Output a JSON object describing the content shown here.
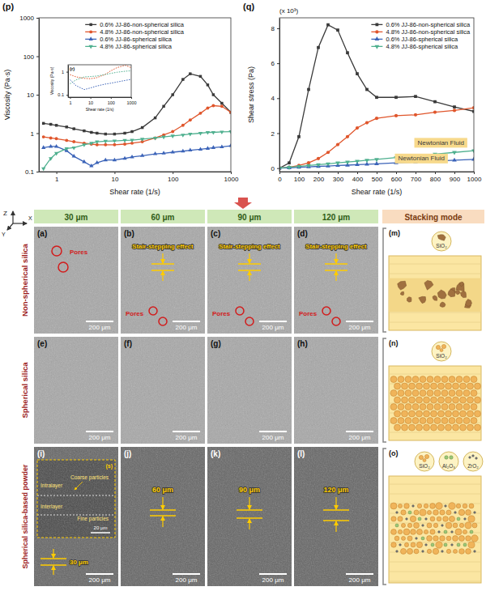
{
  "chart_data": [
    {
      "type": "line",
      "panel": "(p)",
      "xlabel": "Shear rate (1/s)",
      "ylabel": "Viscosity (Pa·s)",
      "log": true,
      "xlim": [
        0.5,
        1000
      ],
      "ylim": [
        0.1,
        1000
      ],
      "xticks": [
        1,
        10,
        100,
        1000
      ],
      "yticks": [
        0.1,
        1,
        10,
        100,
        1000
      ],
      "legend": "upper center",
      "x": [
        0.6,
        0.8,
        1,
        1.5,
        2,
        3,
        4,
        5,
        7,
        10,
        15,
        20,
        30,
        50,
        70,
        100,
        150,
        200,
        300,
        400,
        500,
        700,
        1000
      ],
      "series": [
        {
          "name": "0.6% JJ-86-non-spherical silica",
          "color": "#3a3a3a",
          "marker": "square",
          "line_style": "solid",
          "values": [
            1.8,
            1.7,
            1.6,
            1.45,
            1.3,
            1.15,
            1.05,
            1.0,
            0.95,
            0.95,
            1.0,
            1.1,
            1.4,
            2.5,
            5,
            10,
            25,
            35,
            30,
            18,
            10,
            6,
            3.5
          ]
        },
        {
          "name": "4.8% JJ-86-non-spherical silica",
          "color": "#e0562c",
          "marker": "circle",
          "line_style": "solid",
          "values": [
            0.8,
            0.75,
            0.72,
            0.65,
            0.6,
            0.55,
            0.52,
            0.5,
            0.5,
            0.5,
            0.52,
            0.55,
            0.6,
            0.75,
            0.9,
            1.1,
            1.6,
            2.2,
            3.3,
            4.5,
            5.2,
            5,
            3.5
          ]
        },
        {
          "name": "0.6% JJ-86-spherical silica",
          "color": "#3b63b8",
          "marker": "triangle-up",
          "line_style": "solid",
          "values": [
            0.42,
            0.45,
            0.45,
            0.35,
            0.25,
            0.18,
            0.14,
            0.17,
            0.2,
            0.2,
            0.22,
            0.24,
            0.26,
            0.29,
            0.3,
            0.32,
            0.34,
            0.36,
            0.38,
            0.4,
            0.42,
            0.44,
            0.47
          ]
        },
        {
          "name": "4.8% JJ-86-spherical silica",
          "color": "#4fb08f",
          "marker": "triangle-down",
          "line_style": "solid",
          "values": [
            0.12,
            0.22,
            0.3,
            0.4,
            0.42,
            0.5,
            0.55,
            0.6,
            0.62,
            0.63,
            0.65,
            0.66,
            0.7,
            0.75,
            0.8,
            0.85,
            0.9,
            0.95,
            1.0,
            1.05,
            1.05,
            1.08,
            1.1
          ]
        }
      ]
    },
    {
      "type": "line",
      "panel": "(q)",
      "xlabel": "Shear rate (1/s)",
      "ylabel": "Shear stress (Pa)",
      "y_multiplier": "(x 10³)",
      "xlim": [
        0,
        1000
      ],
      "ylim": [
        -0.2,
        8.6
      ],
      "xticks": [
        0,
        100,
        200,
        300,
        400,
        500,
        600,
        700,
        800,
        900,
        1000
      ],
      "yticks": [
        0,
        2,
        4,
        6,
        8
      ],
      "legend": "upper right",
      "annotations": [
        {
          "text": "Newtonian Fluid",
          "x": 830,
          "y": 1.45
        },
        {
          "text": "Newtonian Fluid",
          "x": 730,
          "y": 0.55
        }
      ],
      "x": [
        0,
        50,
        100,
        150,
        200,
        250,
        300,
        350,
        400,
        450,
        500,
        600,
        700,
        800,
        900,
        1000
      ],
      "series": [
        {
          "name": "0.6% JJ-86-non-spherical silica",
          "color": "#3a3a3a",
          "marker": "square",
          "line_style": "solid",
          "values": [
            0,
            0.3,
            1.8,
            4.5,
            6.9,
            8.2,
            7.9,
            6.6,
            5.4,
            4.5,
            4.05,
            4.05,
            4.1,
            3.8,
            3.5,
            3.25
          ]
        },
        {
          "name": "4.8% JJ-86-non-spherical silica",
          "color": "#e0562c",
          "marker": "circle",
          "line_style": "solid",
          "values": [
            0,
            0.05,
            0.15,
            0.3,
            0.55,
            0.9,
            1.35,
            1.8,
            2.3,
            2.6,
            2.85,
            3.0,
            3.05,
            3.2,
            3.3,
            3.45
          ]
        },
        {
          "name": "0.6% JJ-86-spherical silica",
          "color": "#3b63b8",
          "marker": "triangle-up",
          "line_style": "solid",
          "values": [
            0,
            0.02,
            0.05,
            0.07,
            0.1,
            0.12,
            0.15,
            0.17,
            0.2,
            0.22,
            0.25,
            0.3,
            0.35,
            0.4,
            0.45,
            0.5
          ]
        },
        {
          "name": "4.8% JJ-86-spherical silica",
          "color": "#4fb08f",
          "marker": "triangle-down",
          "line_style": "solid",
          "values": [
            0,
            0.05,
            0.1,
            0.15,
            0.2,
            0.25,
            0.3,
            0.35,
            0.4,
            0.45,
            0.5,
            0.6,
            0.7,
            0.8,
            0.9,
            1.0
          ]
        }
      ]
    },
    {
      "type": "line",
      "panel": "(r)",
      "xlabel": "Shear rate (1/s)",
      "ylabel": "Viscosity (Pa·s)",
      "log": true,
      "xlim": [
        0.8,
        1000
      ],
      "ylim": [
        0.08,
        2
      ],
      "xticks": [
        1,
        10,
        100,
        1000
      ],
      "yticks": [
        0.1,
        1
      ],
      "x": [
        1,
        2,
        5,
        10,
        20,
        50,
        100,
        200,
        500,
        1000
      ],
      "series": [
        {
          "color": "#e0562c",
          "marker": "none",
          "line_style": "dotted",
          "values": [
            0.75,
            0.6,
            0.52,
            0.5,
            0.55,
            0.75,
            1.1,
            1.5,
            1.9,
            1.5
          ]
        },
        {
          "color": "#4fb08f",
          "marker": "none",
          "line_style": "dotted",
          "values": [
            0.3,
            0.45,
            0.6,
            0.62,
            0.65,
            0.75,
            0.85,
            0.95,
            1.05,
            1.1
          ]
        },
        {
          "color": "#3b63b8",
          "marker": "none",
          "line_style": "dotted",
          "values": [
            0.45,
            0.25,
            0.17,
            0.2,
            0.24,
            0.29,
            0.32,
            0.36,
            0.42,
            0.47
          ]
        }
      ]
    }
  ],
  "figure": {
    "axes": [
      "Z",
      "X",
      "Y"
    ],
    "column_headers": [
      "30 μm",
      "60 μm",
      "90 μm",
      "120 μm"
    ],
    "stacking_header": "Stacking mode",
    "rows": [
      {
        "label": "Non-spherical silica",
        "panels": [
          {
            "letter": "(a)",
            "pore_label": "Pores",
            "scale_bar": "200 μm"
          },
          {
            "letter": "(b)",
            "stair_label": "Stair-stepping effect",
            "pore_label": "Pores",
            "scale_bar": "200 μm"
          },
          {
            "letter": "(c)",
            "stair_label": "Stair-stepping effect",
            "pore_label": "Pores",
            "scale_bar": "200 μm"
          },
          {
            "letter": "(d)",
            "stair_label": "Stair-stepping effect",
            "pore_label": "Pores",
            "scale_bar": "200 μm"
          }
        ],
        "stacking": {
          "letter": "(m)",
          "particles": [
            "SiO₂"
          ]
        }
      },
      {
        "label": "Spherical silica",
        "panels": [
          {
            "letter": "(e)",
            "scale_bar": "200 μm"
          },
          {
            "letter": "(f)",
            "scale_bar": "200 μm"
          },
          {
            "letter": "(g)",
            "scale_bar": "200 μm"
          },
          {
            "letter": "(h)",
            "scale_bar": "200 μm"
          }
        ],
        "stacking": {
          "letter": "(n)",
          "particles": [
            "SiO₂"
          ]
        }
      },
      {
        "label": "Spherical silica-based powder",
        "panels": [
          {
            "letter": "(i)",
            "layer_label": "30 μm",
            "scale_bar": "200 μm",
            "inset": {
              "letter": "(s)",
              "intralayer": "Intralayer",
              "interlayer": "Interlayer",
              "coarse_particles": "Coarse particles",
              "fine_particles": "Fine particles",
              "scale_bar": "20 μm"
            }
          },
          {
            "letter": "(j)",
            "layer_label": "60 μm",
            "scale_bar": "200 μm"
          },
          {
            "letter": "(k)",
            "layer_label": "90 μm",
            "scale_bar": "200 μm"
          },
          {
            "letter": "(l)",
            "layer_label": "120 μm",
            "scale_bar": "200 μm"
          }
        ],
        "stacking": {
          "letter": "(o)",
          "particles": [
            "SiO₂",
            "Al₂O₃",
            "ZrO₂"
          ]
        }
      }
    ]
  }
}
